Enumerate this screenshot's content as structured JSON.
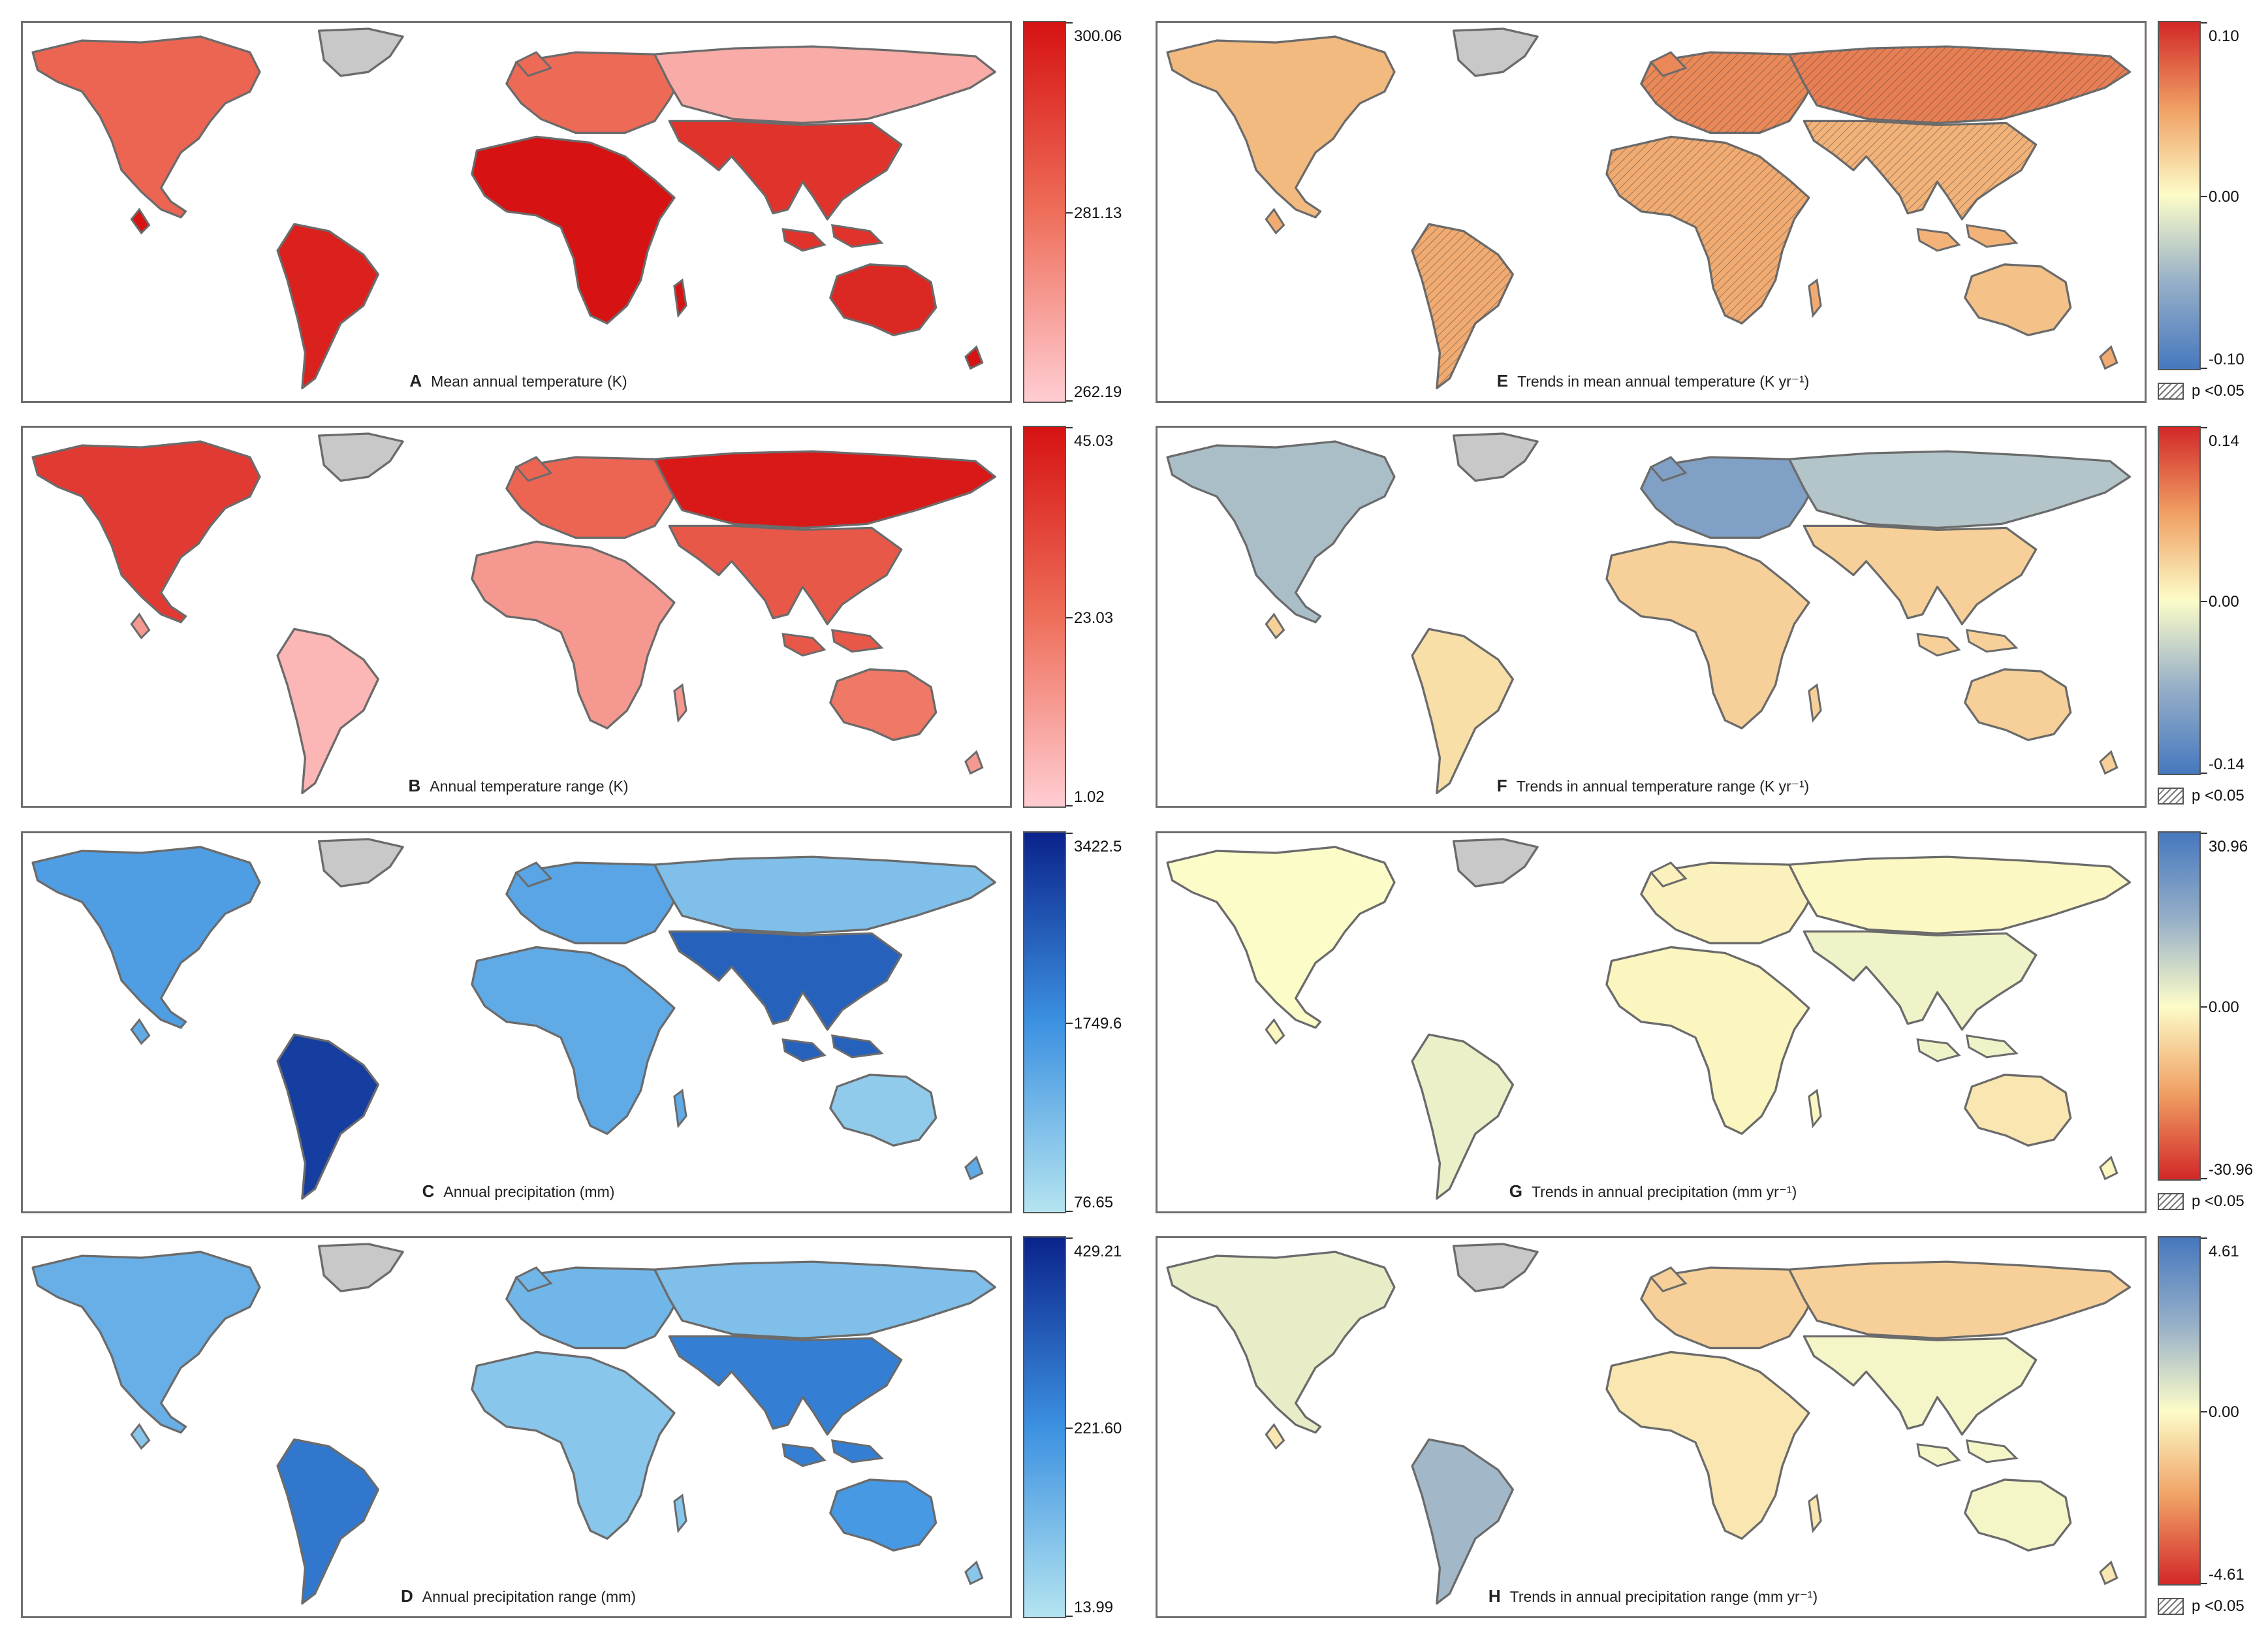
{
  "figure": {
    "panels": [
      {
        "letter": "A",
        "title": "Mean annual temperature (K)",
        "colormap": "reds",
        "legend": {
          "max": "300.06",
          "mid": "281.13",
          "min": "262.19"
        },
        "significance": null,
        "fills": {
          "na": 0.55,
          "sa": 0.92,
          "eu": 0.52,
          "asia_n": 0.18,
          "asia_s": 0.82,
          "af": 1.0,
          "au": 0.88,
          "gl": "na"
        },
        "hatched": []
      },
      {
        "letter": "B",
        "title": "Annual temperature range (K)",
        "colormap": "reds",
        "legend": {
          "max": "45.03",
          "mid": "23.03",
          "min": "1.02"
        },
        "significance": null,
        "fills": {
          "na": 0.78,
          "sa": 0.12,
          "eu": 0.55,
          "asia_n": 0.96,
          "asia_s": 0.62,
          "af": 0.28,
          "au": 0.45,
          "gl": "na"
        },
        "hatched": []
      },
      {
        "letter": "C",
        "title": "Annual precipitation (mm)",
        "colormap": "blues",
        "legend": {
          "max": "3422.5",
          "mid": "1749.6",
          "min": "76.65"
        },
        "significance": null,
        "fills": {
          "na": 0.42,
          "sa": 0.88,
          "eu": 0.38,
          "asia_n": 0.22,
          "asia_s": 0.72,
          "af": 0.35,
          "au": 0.15,
          "gl": "na"
        },
        "hatched": []
      },
      {
        "letter": "D",
        "title": "Annual precipitation range (mm)",
        "colormap": "blues",
        "legend": {
          "max": "429.21",
          "mid": "221.60",
          "min": "13.99"
        },
        "significance": null,
        "fills": {
          "na": 0.32,
          "sa": 0.62,
          "eu": 0.28,
          "asia_n": 0.22,
          "asia_s": 0.58,
          "af": 0.18,
          "au": 0.45,
          "gl": "na"
        },
        "hatched": []
      },
      {
        "letter": "E",
        "title": "Trends in mean annual temperature (K yr⁻¹)",
        "colormap": "diverging",
        "legend": {
          "max": "0.10",
          "mid": "0.00",
          "min": "-0.10"
        },
        "significance": "p <0.05",
        "fills": {
          "na": 0.68,
          "sa": 0.72,
          "eu": 0.8,
          "asia_n": 0.82,
          "asia_s": 0.7,
          "af": 0.72,
          "au": 0.66,
          "gl": "na"
        },
        "hatched": [
          "sa",
          "eu",
          "asia_n",
          "asia_s",
          "af"
        ]
      },
      {
        "letter": "F",
        "title": "Trends in annual temperature range (K yr⁻¹)",
        "colormap": "diverging",
        "legend": {
          "max": "0.14",
          "mid": "0.00",
          "min": "-0.14"
        },
        "significance": "p <0.05",
        "fills": {
          "na": 0.3,
          "sa": 0.58,
          "eu": 0.18,
          "asia_n": 0.32,
          "asia_s": 0.62,
          "af": 0.62,
          "au": 0.62,
          "gl": "na"
        },
        "hatched": []
      },
      {
        "letter": "G",
        "title": "Trends in annual precipitation (mm yr⁻¹)",
        "colormap": "diverging_rev",
        "legend": {
          "max": "30.96",
          "mid": "0.00",
          "min": "-30.96"
        },
        "significance": "p <0.05",
        "fills": {
          "na": 0.5,
          "sa": 0.54,
          "eu": 0.47,
          "asia_n": 0.49,
          "asia_s": 0.53,
          "af": 0.48,
          "au": 0.44,
          "gl": "na"
        },
        "hatched": []
      },
      {
        "letter": "H",
        "title": "Trends in annual precipitation range (mm yr⁻¹)",
        "colormap": "diverging_rev",
        "legend": {
          "max": "4.61",
          "mid": "0.00",
          "min": "-4.61"
        },
        "significance": "p <0.05",
        "fills": {
          "na": 0.55,
          "sa": 0.72,
          "eu": 0.38,
          "asia_n": 0.38,
          "asia_s": 0.52,
          "af": 0.44,
          "au": 0.52,
          "gl": "na"
        },
        "hatched": []
      }
    ]
  }
}
